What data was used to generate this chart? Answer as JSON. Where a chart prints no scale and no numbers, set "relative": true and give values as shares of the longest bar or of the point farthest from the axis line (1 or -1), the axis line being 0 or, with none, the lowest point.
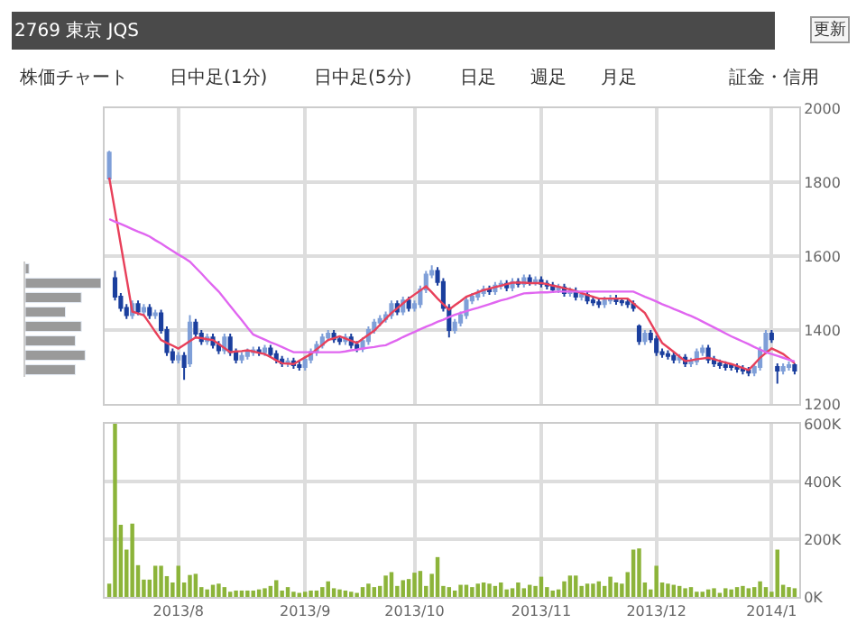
{
  "chart_data": [
    {
      "type": "candlestick",
      "title": "2769 東京 JQS",
      "annotations": [
        "更新",
        "株価チャート",
        "日中足(1分)",
        "日中足(5分)",
        "日足",
        "週足",
        "月足",
        "証金・信用"
      ],
      "categories": [
        null,
        null,
        null,
        null,
        null,
        null,
        null,
        null,
        null,
        null,
        null,
        null,
        "2013/8",
        null,
        null,
        null,
        null,
        null,
        null,
        null,
        null,
        null,
        null,
        null,
        null,
        null,
        null,
        null,
        null,
        null,
        null,
        null,
        null,
        null,
        "2013/9",
        null,
        null,
        null,
        null,
        null,
        null,
        null,
        null,
        null,
        null,
        null,
        null,
        null,
        null,
        null,
        null,
        null,
        null,
        "2013/10",
        null,
        null,
        null,
        null,
        null,
        null,
        null,
        null,
        null,
        null,
        null,
        null,
        null,
        null,
        null,
        null,
        null,
        null,
        null,
        null,
        null,
        "2013/11",
        null,
        null,
        null,
        null,
        null,
        null,
        null,
        null,
        null,
        null,
        null,
        null,
        null,
        null,
        null,
        null,
        null,
        null,
        null,
        "2013/12",
        null,
        null,
        null,
        null,
        null,
        null,
        null,
        null,
        null,
        null,
        null,
        null,
        null,
        null,
        null,
        null,
        null,
        null,
        null,
        "2014/1",
        null,
        null,
        null,
        null
      ],
      "ohlc": [
        [
          1810,
          1885,
          1805,
          1880
        ],
        [
          1540,
          1560,
          1480,
          1490
        ],
        [
          1490,
          1500,
          1450,
          1460
        ],
        [
          1460,
          1470,
          1430,
          1440
        ],
        [
          1440,
          1480,
          1430,
          1470
        ],
        [
          1470,
          1480,
          1440,
          1450
        ],
        [
          1450,
          1470,
          1440,
          1460
        ],
        [
          1460,
          1470,
          1430,
          1440
        ],
        [
          1440,
          1455,
          1430,
          1445
        ],
        [
          1445,
          1455,
          1390,
          1400
        ],
        [
          1400,
          1410,
          1330,
          1340
        ],
        [
          1340,
          1350,
          1310,
          1320
        ],
        [
          1320,
          1340,
          1310,
          1330
        ],
        [
          1330,
          1340,
          1265,
          1300
        ],
        [
          1310,
          1440,
          1300,
          1420
        ],
        [
          1420,
          1430,
          1380,
          1390
        ],
        [
          1390,
          1400,
          1360,
          1370
        ],
        [
          1370,
          1390,
          1360,
          1380
        ],
        [
          1380,
          1390,
          1350,
          1360
        ],
        [
          1360,
          1370,
          1335,
          1345
        ],
        [
          1345,
          1390,
          1335,
          1380
        ],
        [
          1380,
          1390,
          1330,
          1340
        ],
        [
          1340,
          1350,
          1310,
          1320
        ],
        [
          1320,
          1340,
          1310,
          1330
        ],
        [
          1330,
          1350,
          1320,
          1340
        ],
        [
          1340,
          1355,
          1330,
          1345
        ],
        [
          1345,
          1355,
          1330,
          1340
        ],
        [
          1340,
          1360,
          1330,
          1350
        ],
        [
          1350,
          1360,
          1325,
          1335
        ],
        [
          1335,
          1345,
          1310,
          1320
        ],
        [
          1320,
          1330,
          1300,
          1310
        ],
        [
          1310,
          1325,
          1300,
          1315
        ],
        [
          1315,
          1325,
          1295,
          1305
        ],
        [
          1305,
          1315,
          1290,
          1300
        ],
        [
          1300,
          1330,
          1290,
          1320
        ],
        [
          1320,
          1350,
          1310,
          1340
        ],
        [
          1340,
          1370,
          1330,
          1360
        ],
        [
          1360,
          1390,
          1350,
          1380
        ],
        [
          1380,
          1400,
          1370,
          1390
        ],
        [
          1390,
          1400,
          1365,
          1375
        ],
        [
          1375,
          1385,
          1360,
          1370
        ],
        [
          1370,
          1390,
          1360,
          1380
        ],
        [
          1380,
          1390,
          1350,
          1360
        ],
        [
          1360,
          1370,
          1340,
          1350
        ],
        [
          1350,
          1380,
          1340,
          1370
        ],
        [
          1370,
          1410,
          1360,
          1400
        ],
        [
          1400,
          1430,
          1390,
          1420
        ],
        [
          1420,
          1440,
          1410,
          1430
        ],
        [
          1430,
          1450,
          1420,
          1440
        ],
        [
          1440,
          1480,
          1430,
          1470
        ],
        [
          1470,
          1480,
          1440,
          1450
        ],
        [
          1450,
          1490,
          1440,
          1480
        ],
        [
          1480,
          1490,
          1450,
          1460
        ],
        [
          1460,
          1480,
          1450,
          1470
        ],
        [
          1470,
          1520,
          1460,
          1510
        ],
        [
          1510,
          1560,
          1500,
          1550
        ],
        [
          1550,
          1575,
          1540,
          1560
        ],
        [
          1560,
          1570,
          1520,
          1530
        ],
        [
          1530,
          1540,
          1450,
          1460
        ],
        [
          1460,
          1470,
          1380,
          1400
        ],
        [
          1400,
          1430,
          1390,
          1420
        ],
        [
          1420,
          1450,
          1410,
          1440
        ],
        [
          1440,
          1490,
          1430,
          1480
        ],
        [
          1480,
          1500,
          1470,
          1490
        ],
        [
          1490,
          1510,
          1480,
          1500
        ],
        [
          1500,
          1520,
          1490,
          1510
        ],
        [
          1510,
          1520,
          1495,
          1505
        ],
        [
          1505,
          1530,
          1495,
          1520
        ],
        [
          1520,
          1535,
          1510,
          1525
        ],
        [
          1525,
          1535,
          1505,
          1515
        ],
        [
          1515,
          1540,
          1505,
          1530
        ],
        [
          1530,
          1540,
          1515,
          1525
        ],
        [
          1525,
          1550,
          1515,
          1540
        ],
        [
          1540,
          1550,
          1520,
          1530
        ],
        [
          1530,
          1545,
          1520,
          1535
        ],
        [
          1535,
          1545,
          1515,
          1525
        ],
        [
          1525,
          1535,
          1510,
          1520
        ],
        [
          1520,
          1530,
          1500,
          1510
        ],
        [
          1510,
          1525,
          1500,
          1515
        ],
        [
          1515,
          1525,
          1490,
          1500
        ],
        [
          1500,
          1515,
          1490,
          1505
        ],
        [
          1505,
          1515,
          1480,
          1490
        ],
        [
          1490,
          1505,
          1480,
          1495
        ],
        [
          1495,
          1505,
          1470,
          1480
        ],
        [
          1480,
          1490,
          1465,
          1475
        ],
        [
          1475,
          1485,
          1460,
          1470
        ],
        [
          1470,
          1490,
          1460,
          1480
        ],
        [
          1480,
          1495,
          1470,
          1485
        ],
        [
          1485,
          1495,
          1468,
          1478
        ],
        [
          1478,
          1488,
          1465,
          1475
        ],
        [
          1475,
          1485,
          1460,
          1470
        ],
        [
          1470,
          1480,
          1450,
          1460
        ],
        [
          1410,
          1415,
          1360,
          1370
        ],
        [
          1370,
          1400,
          1360,
          1390
        ],
        [
          1390,
          1400,
          1365,
          1375
        ],
        [
          1375,
          1385,
          1330,
          1340
        ],
        [
          1340,
          1350,
          1325,
          1335
        ],
        [
          1335,
          1345,
          1320,
          1330
        ],
        [
          1330,
          1340,
          1310,
          1320
        ],
        [
          1320,
          1335,
          1310,
          1325
        ],
        [
          1325,
          1335,
          1300,
          1310
        ],
        [
          1310,
          1325,
          1300,
          1315
        ],
        [
          1315,
          1350,
          1305,
          1340
        ],
        [
          1340,
          1360,
          1330,
          1350
        ],
        [
          1350,
          1360,
          1310,
          1320
        ],
        [
          1320,
          1330,
          1300,
          1310
        ],
        [
          1310,
          1320,
          1295,
          1305
        ],
        [
          1305,
          1315,
          1290,
          1300
        ],
        [
          1305,
          1310,
          1290,
          1300
        ],
        [
          1300,
          1310,
          1285,
          1295
        ],
        [
          1295,
          1305,
          1280,
          1290
        ],
        [
          1290,
          1300,
          1275,
          1285
        ],
        [
          1285,
          1310,
          1275,
          1300
        ],
        [
          1300,
          1355,
          1290,
          1345
        ],
        [
          1345,
          1400,
          1335,
          1390
        ],
        [
          1390,
          1400,
          1365,
          1375
        ],
        [
          1300,
          1310,
          1255,
          1290
        ],
        [
          1290,
          1310,
          1280,
          1300
        ],
        [
          1300,
          1315,
          1290,
          1305
        ],
        [
          1305,
          1310,
          1280,
          1290
        ]
      ],
      "series": [
        {
          "type": "line",
          "color": "#e8405a",
          "values": [
            1812,
            1722,
            1631,
            1541,
            1450,
            1445,
            1440,
            1418,
            1395,
            1373,
            1365,
            1358,
            1350,
            1360,
            1370,
            1380,
            1378,
            1375,
            1373,
            1362,
            1351,
            1340,
            1342,
            1343,
            1345,
            1342,
            1338,
            1335,
            1327,
            1318,
            1310,
            1309,
            1308,
            1317,
            1326,
            1335,
            1348,
            1360,
            1373,
            1378,
            1383,
            1377,
            1371,
            1365,
            1376,
            1387,
            1398,
            1414,
            1430,
            1446,
            1459,
            1472,
            1485,
            1496,
            1507,
            1518,
            1502,
            1485,
            1470,
            1455,
            1467,
            1478,
            1490,
            1496,
            1502,
            1508,
            1512,
            1516,
            1520,
            1524,
            1528,
            1528,
            1528,
            1527,
            1527,
            1527,
            1524,
            1520,
            1517,
            1513,
            1510,
            1505,
            1500,
            1495,
            1490,
            1485,
            1485,
            1485,
            1485,
            1485,
            1485,
            1472,
            1459,
            1446,
            1419,
            1392,
            1365,
            1353,
            1341,
            1328,
            1316,
            1318,
            1321,
            1323,
            1325,
            1321,
            1316,
            1312,
            1308,
            1303,
            1297,
            1292,
            1308,
            1325,
            1338,
            1350,
            1343,
            1335,
            1323,
            1310
          ]
        },
        {
          "type": "line",
          "color": "#e066f0",
          "values": [
            1700,
            1693,
            1687,
            1680,
            1673,
            1666,
            1660,
            1653,
            1643,
            1634,
            1624,
            1614,
            1604,
            1595,
            1585,
            1569,
            1553,
            1536,
            1520,
            1504,
            1485,
            1465,
            1446,
            1427,
            1407,
            1388,
            1381,
            1374,
            1367,
            1361,
            1354,
            1347,
            1340,
            1340,
            1340,
            1340,
            1340,
            1340,
            1340,
            1340,
            1340,
            1342,
            1345,
            1347,
            1350,
            1352,
            1354,
            1357,
            1359,
            1366,
            1373,
            1381,
            1388,
            1395,
            1402,
            1409,
            1415,
            1422,
            1428,
            1435,
            1441,
            1446,
            1451,
            1456,
            1460,
            1465,
            1470,
            1475,
            1480,
            1484,
            1489,
            1494,
            1499,
            1500,
            1501,
            1502,
            1502,
            1503,
            1504,
            1504,
            1504,
            1504,
            1504,
            1504,
            1504,
            1504,
            1504,
            1504,
            1504,
            1504,
            1504,
            1504,
            1497,
            1490,
            1484,
            1477,
            1470,
            1464,
            1457,
            1451,
            1444,
            1438,
            1431,
            1423,
            1415,
            1407,
            1399,
            1391,
            1383,
            1376,
            1369,
            1362,
            1354,
            1347,
            1340,
            1335,
            1330,
            1325,
            1320,
            1315
          ]
        }
      ],
      "ylim": [
        1200,
        2000
      ],
      "yticks": [
        1200,
        1400,
        1600,
        1800,
        2000
      ],
      "grid": true,
      "tick_labels": "y"
    },
    {
      "type": "bar",
      "color": "#8cb43a",
      "categories": [
        null,
        null,
        null,
        null,
        null,
        null,
        null,
        null,
        null,
        null,
        null,
        null,
        "2013/8",
        null,
        null,
        null,
        null,
        null,
        null,
        null,
        null,
        null,
        null,
        null,
        null,
        null,
        null,
        null,
        null,
        null,
        null,
        null,
        null,
        null,
        "2013/9",
        null,
        null,
        null,
        null,
        null,
        null,
        null,
        null,
        null,
        null,
        null,
        null,
        null,
        null,
        null,
        null,
        null,
        null,
        "2013/10",
        null,
        null,
        null,
        null,
        null,
        null,
        null,
        null,
        null,
        null,
        null,
        null,
        null,
        null,
        null,
        null,
        null,
        null,
        null,
        null,
        null,
        "2013/11",
        null,
        null,
        null,
        null,
        null,
        null,
        null,
        null,
        null,
        null,
        null,
        null,
        null,
        null,
        null,
        null,
        null,
        null,
        null,
        "2013/12",
        null,
        null,
        null,
        null,
        null,
        null,
        null,
        null,
        null,
        null,
        null,
        null,
        null,
        null,
        null,
        null,
        null,
        null,
        null,
        "2014/1",
        null,
        null,
        null,
        null
      ],
      "values": [
        46000,
        600000,
        250000,
        164000,
        254000,
        110000,
        60000,
        60000,
        108000,
        108000,
        72000,
        50000,
        108000,
        50000,
        76000,
        80000,
        34000,
        26000,
        42000,
        46000,
        34000,
        18000,
        22000,
        22000,
        22000,
        22000,
        26000,
        30000,
        38000,
        58000,
        22000,
        34000,
        18000,
        14000,
        18000,
        22000,
        22000,
        34000,
        54000,
        30000,
        26000,
        22000,
        18000,
        14000,
        34000,
        46000,
        34000,
        38000,
        74000,
        86000,
        38000,
        58000,
        62000,
        84000,
        90000,
        38000,
        80000,
        138000,
        38000,
        34000,
        22000,
        42000,
        42000,
        34000,
        46000,
        50000,
        46000,
        38000,
        50000,
        26000,
        30000,
        50000,
        30000,
        42000,
        38000,
        70000,
        34000,
        22000,
        26000,
        54000,
        74000,
        74000,
        38000,
        46000,
        46000,
        54000,
        38000,
        70000,
        50000,
        46000,
        86000,
        164000,
        168000,
        50000,
        26000,
        108000,
        50000,
        46000,
        42000,
        38000,
        30000,
        34000,
        18000,
        18000,
        26000,
        30000,
        14000,
        30000,
        26000,
        34000,
        38000,
        30000,
        34000,
        54000,
        34000,
        18000,
        164000,
        42000,
        34000,
        30000
      ],
      "ylim": [
        0,
        600000
      ],
      "yticks": [
        {
          "value": 0,
          "label": "0K"
        },
        {
          "value": 200000,
          "label": "200K"
        },
        {
          "value": 400000,
          "label": "400K"
        },
        {
          "value": 600000,
          "label": "600K"
        }
      ],
      "grid": true
    },
    {
      "type": "bar",
      "orientation": "horizontal",
      "relative": true,
      "color": "#9a9a9a",
      "categories": [
        null,
        null,
        null,
        null,
        null,
        null,
        null,
        null
      ],
      "values": [
        0.05,
        1.0,
        0.74,
        0.53,
        0.74,
        0.66,
        0.79,
        0.66
      ]
    }
  ]
}
